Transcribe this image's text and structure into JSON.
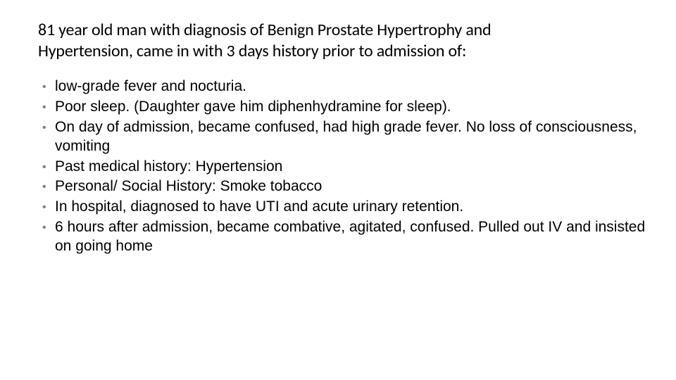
{
  "slide": {
    "title": "81 year old man with diagnosis of Benign Prostate Hypertrophy and Hypertension, came in with 3 days history prior to admission of:",
    "bullets": [
      "low-grade fever and nocturia.",
      "Poor sleep. (Daughter gave him diphenhydramine for sleep).",
      "On day of admission, became confused, had high grade fever. No loss of consciousness, vomiting",
      "Past medical history: Hypertension",
      "Personal/ Social History: Smoke tobacco",
      "In hospital, diagnosed to have UTI and acute urinary retention.",
      "6 hours after admission, became combative, agitated, confused. Pulled out IV and insisted on going home"
    ]
  },
  "style": {
    "background_color": "#ffffff",
    "title_font_family": "Calibri",
    "title_font_size_pt": 18,
    "title_color": "#000000",
    "body_font_family": "Arial",
    "body_font_size_pt": 16,
    "body_color": "#000000",
    "bullet_marker_color": "#808080"
  }
}
